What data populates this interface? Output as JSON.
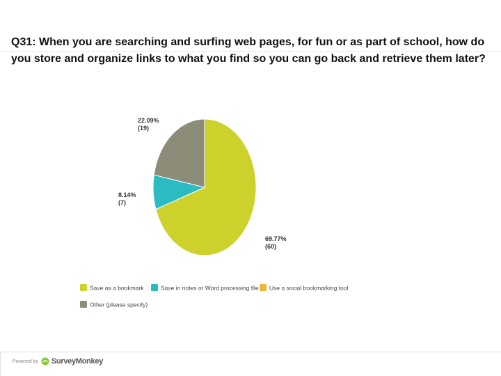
{
  "question": "Q31: When you are searching and surfing web pages, for fun or as part of school, how do you store and organize links to what you find so you can go back and retrieve them later?",
  "chart_data": {
    "type": "pie",
    "slices": [
      {
        "label": "Save as a bookmark",
        "percent": 69.77,
        "count": 60,
        "percent_text": "69.77%",
        "count_text": "(60)",
        "color": "#cdd12c"
      },
      {
        "label": "Save in notes or Word processing file",
        "percent": 8.14,
        "count": 7,
        "percent_text": "8.14%",
        "count_text": "(7)",
        "color": "#2bbcc2"
      },
      {
        "label": "Use a social bookmarking tool",
        "percent": 0,
        "count": 0,
        "percent_text": "",
        "count_text": "",
        "color": "#f0b53d"
      },
      {
        "label": "Other (please specify)",
        "percent": 22.09,
        "count": 19,
        "percent_text": "22.09%",
        "count_text": "(19)",
        "color": "#8c8c78"
      }
    ],
    "legend_placement": "bottom"
  },
  "footer": {
    "powered_by": "Powered by",
    "brand": "SurveyMonkey"
  }
}
